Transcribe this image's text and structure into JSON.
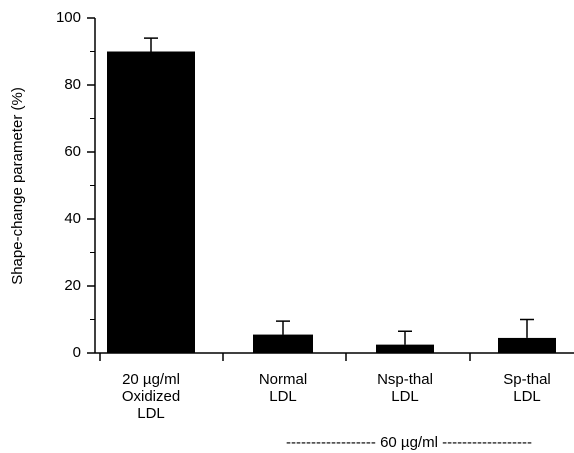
{
  "chart_data": {
    "type": "bar",
    "categories": [
      [
        "20 µg/ml",
        "Oxidized",
        "LDL"
      ],
      [
        "Normal",
        "LDL"
      ],
      [
        "Nsp-thal",
        "LDL"
      ],
      [
        "Sp-thal",
        "LDL"
      ]
    ],
    "values": [
      90,
      5.5,
      2.5,
      4.5
    ],
    "errors": [
      4,
      4,
      4,
      5.5
    ],
    "color": "#000000",
    "ylabel": "Shape-change parameter (%)",
    "annotation": "------------------ 60 µg/ml ------------------",
    "ylim": [
      0,
      100
    ],
    "yticks": [
      0,
      20,
      40,
      60,
      80,
      100
    ]
  }
}
